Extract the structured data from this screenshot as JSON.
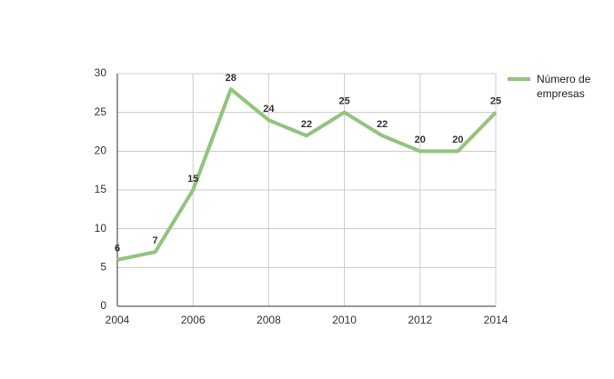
{
  "chart_data": {
    "type": "line",
    "x": [
      2004,
      2005,
      2006,
      2007,
      2008,
      2009,
      2010,
      2011,
      2012,
      2013,
      2014
    ],
    "series": [
      {
        "name": "Número de empresas",
        "color": "#93c47d",
        "values": [
          6,
          7,
          15,
          28,
          24,
          22,
          25,
          22,
          20,
          20,
          25
        ]
      }
    ],
    "xlim": [
      2004,
      2014
    ],
    "xticks": [
      2004,
      2006,
      2008,
      2010,
      2012,
      2014
    ],
    "ylim": [
      0,
      30
    ],
    "yticks": [
      0,
      5,
      10,
      15,
      20,
      25,
      30
    ],
    "grid": true,
    "data_labels": true,
    "legend": "right"
  }
}
